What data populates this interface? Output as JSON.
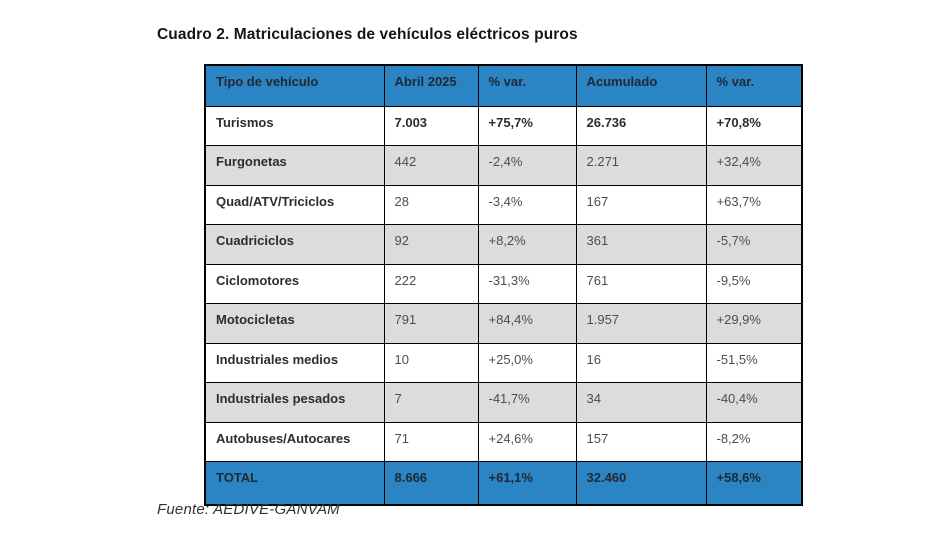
{
  "title": "Cuadro 2. Matriculaciones de vehículos eléctricos puros",
  "source": "Fuente: AEDIVE-GANVAM",
  "colors": {
    "header_blue": "#2B84C4",
    "row_shaded": "#DCDCDC",
    "border": "#000000",
    "label_text": "#2D2D2D",
    "value_text": "#4D4D4D",
    "header_text": "#212A31"
  },
  "table": {
    "columns": [
      "Tipo de vehículo",
      "Abril 2025",
      "% var.",
      "Acumulado",
      "% var."
    ],
    "rows": [
      {
        "label": "Turismos",
        "values": [
          "7.003",
          "+75,7%",
          "26.736",
          "+70,8%"
        ],
        "emphasis": true,
        "shaded": false
      },
      {
        "label": "Furgonetas",
        "values": [
          "442",
          "-2,4%",
          "2.271",
          "+32,4%"
        ],
        "emphasis": false,
        "shaded": true
      },
      {
        "label": "Quad/ATV/Triciclos",
        "values": [
          "28",
          "-3,4%",
          "167",
          "+63,7%"
        ],
        "emphasis": false,
        "shaded": false
      },
      {
        "label": "Cuadriciclos",
        "values": [
          "92",
          "+8,2%",
          "361",
          "-5,7%"
        ],
        "emphasis": false,
        "shaded": true
      },
      {
        "label": "Ciclomotores",
        "values": [
          "222",
          "-31,3%",
          "761",
          "-9,5%"
        ],
        "emphasis": false,
        "shaded": false
      },
      {
        "label": "Motocicletas",
        "values": [
          "791",
          "+84,4%",
          "1.957",
          "+29,9%"
        ],
        "emphasis": false,
        "shaded": true
      },
      {
        "label": "Industriales medios",
        "values": [
          "10",
          "+25,0%",
          "16",
          "-51,5%"
        ],
        "emphasis": false,
        "shaded": false
      },
      {
        "label": "Industriales pesados",
        "values": [
          "7",
          "-41,7%",
          "34",
          "-40,4%"
        ],
        "emphasis": false,
        "shaded": true
      },
      {
        "label": "Autobuses/Autocares",
        "values": [
          "71",
          "+24,6%",
          "157",
          "-8,2%"
        ],
        "emphasis": false,
        "shaded": false
      }
    ],
    "total_row": {
      "label": "TOTAL",
      "values": [
        "8.666",
        "+61,1%",
        "32.460",
        "+58,6%"
      ]
    }
  }
}
